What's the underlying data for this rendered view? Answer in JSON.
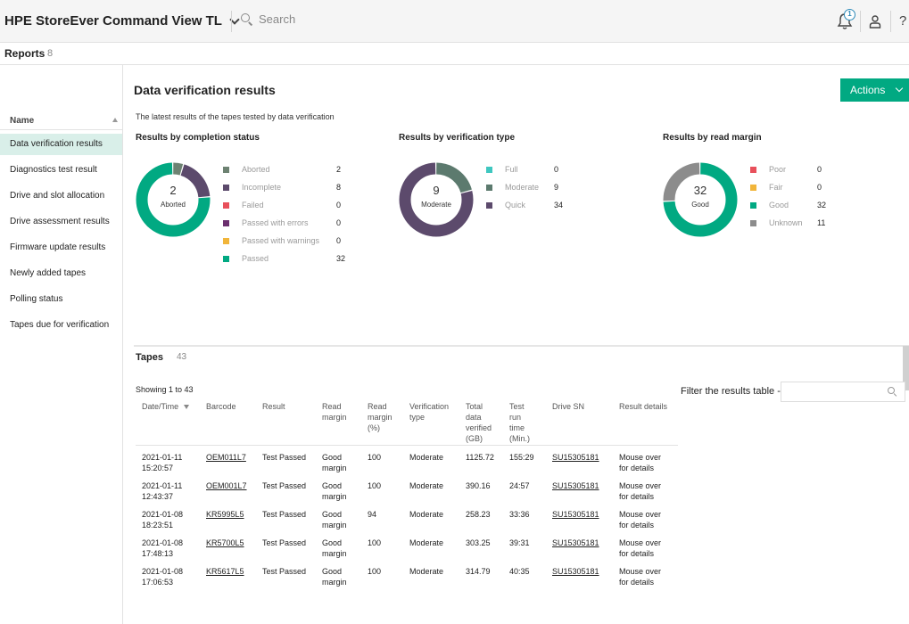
{
  "header": {
    "app_title": "HPE StoreEver Command View TL",
    "search_placeholder": "Search",
    "notification_count": "1",
    "help_glyph": "?"
  },
  "reports": {
    "title": "Reports",
    "count": "8"
  },
  "sidebar": {
    "column_header": "Name",
    "items": [
      {
        "label": "Data verification results",
        "active": true
      },
      {
        "label": "Diagnostics test result",
        "active": false
      },
      {
        "label": "Drive and slot allocation",
        "active": false
      },
      {
        "label": "Drive assessment results",
        "active": false
      },
      {
        "label": "Firmware update results",
        "active": false
      },
      {
        "label": "Newly added tapes",
        "active": false
      },
      {
        "label": "Polling status",
        "active": false
      },
      {
        "label": "Tapes due for verification",
        "active": false
      }
    ]
  },
  "main": {
    "title": "Data verification results",
    "actions_label": "Actions",
    "subtitle": "The latest results of the tapes tested by data verification"
  },
  "charts": [
    {
      "title": "Results by completion status",
      "center_value": "2",
      "center_label": "Aborted",
      "legend": [
        {
          "label": "Aborted",
          "value": "2",
          "color": "#6d8272"
        },
        {
          "label": "Incomplete",
          "value": "8",
          "color": "#5c4a6c"
        },
        {
          "label": "Failed",
          "value": "0",
          "color": "#e8505b"
        },
        {
          "label": "Passed with errors",
          "value": "0",
          "color": "#6b2f6e"
        },
        {
          "label": "Passed with warnings",
          "value": "0",
          "color": "#f1b53a"
        },
        {
          "label": "Passed",
          "value": "32",
          "color": "#01a982"
        }
      ]
    },
    {
      "title": "Results by verification type",
      "center_value": "9",
      "center_label": "Moderate",
      "legend": [
        {
          "label": "Full",
          "value": "0",
          "color": "#3fc7c0"
        },
        {
          "label": "Moderate",
          "value": "9",
          "color": "#5c7a6e"
        },
        {
          "label": "Quick",
          "value": "34",
          "color": "#5c4a6c"
        }
      ]
    },
    {
      "title": "Results by read margin",
      "center_value": "32",
      "center_label": "Good",
      "legend": [
        {
          "label": "Poor",
          "value": "0",
          "color": "#e8505b"
        },
        {
          "label": "Fair",
          "value": "0",
          "color": "#f1b53a"
        },
        {
          "label": "Good",
          "value": "32",
          "color": "#01a982"
        },
        {
          "label": "Unknown",
          "value": "11",
          "color": "#8c8c8c"
        }
      ]
    }
  ],
  "tapes": {
    "title": "Tapes",
    "count": "43",
    "showing": "Showing 1 to 43",
    "filter_label": "Filter the results table -",
    "columns": [
      "Date/Time",
      "Barcode",
      "Result",
      "Read\nmargin",
      "Read\nmargin\n(%)",
      "Verification\ntype",
      "Total\ndata\nverified\n(GB)",
      "Test\nrun\ntime\n(Min.)",
      "Drive SN",
      "Result details"
    ],
    "rows": [
      [
        "2021-01-11\n15:20:57",
        "OEM011L7",
        "Test Passed",
        "Good\nmargin",
        "100",
        "Moderate",
        "1125.72",
        "155:29",
        "SU15305181",
        "Mouse over\nfor details"
      ],
      [
        "2021-01-11\n12:43:37",
        "OEM001L7",
        "Test Passed",
        "Good\nmargin",
        "100",
        "Moderate",
        "390.16",
        "24:57",
        "SU15305181",
        "Mouse over\nfor details"
      ],
      [
        "2021-01-08\n18:23:51",
        "KR5995L5",
        "Test Passed",
        "Good\nmargin",
        "94",
        "Moderate",
        "258.23",
        "33:36",
        "SU15305181",
        "Mouse over\nfor details"
      ],
      [
        "2021-01-08\n17:48:13",
        "KR5700L5",
        "Test Passed",
        "Good\nmargin",
        "100",
        "Moderate",
        "303.25",
        "39:31",
        "SU15305181",
        "Mouse over\nfor details"
      ],
      [
        "2021-01-08\n17:06:53",
        "KR5617L5",
        "Test Passed",
        "Good\nmargin",
        "100",
        "Moderate",
        "314.79",
        "40:35",
        "SU15305181",
        "Mouse over\nfor details"
      ]
    ]
  }
}
